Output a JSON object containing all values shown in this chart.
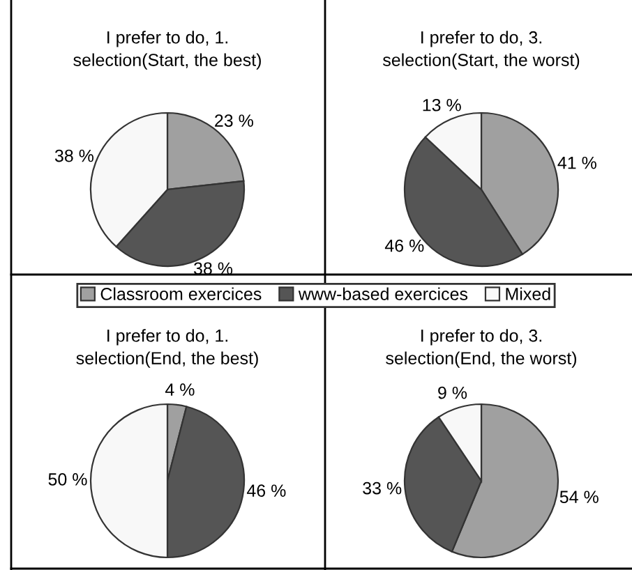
{
  "chart_data": [
    {
      "type": "pie",
      "title": "I prefer to do, 1.\nselection(Start, the best)",
      "categories": [
        "Classroom exercices",
        "www-based exercices",
        "Mixed"
      ],
      "values": [
        23,
        38,
        38
      ],
      "colors": [
        "#a0a0a0",
        "#555555",
        "#f8f8f8"
      ],
      "value_labels": [
        "23 %",
        "38 %",
        "38 %"
      ],
      "legend": "bottom"
    },
    {
      "type": "pie",
      "title": "I prefer to do, 3.\nselection(Start, the worst)",
      "values": [
        41,
        46,
        13
      ],
      "colors": [
        "#a0a0a0",
        "#555555",
        "#f8f8f8"
      ],
      "value_labels": [
        "41 %",
        "46 %",
        "13 %"
      ]
    },
    {
      "type": "pie",
      "title": "I prefer to do, 1.\nselection(End, the best)",
      "values": [
        4,
        46,
        50
      ],
      "colors": [
        "#a0a0a0",
        "#555555",
        "#f8f8f8"
      ],
      "value_labels": [
        "4 %",
        "46 %",
        "50 %"
      ]
    },
    {
      "type": "pie",
      "title": "I prefer to do, 3.\nselection(End, the worst)",
      "values": [
        54,
        33,
        9
      ],
      "colors": [
        "#a0a0a0",
        "#555555",
        "#f8f8f8"
      ],
      "value_labels": [
        "54 %",
        "33 %",
        "9 %"
      ]
    }
  ]
}
